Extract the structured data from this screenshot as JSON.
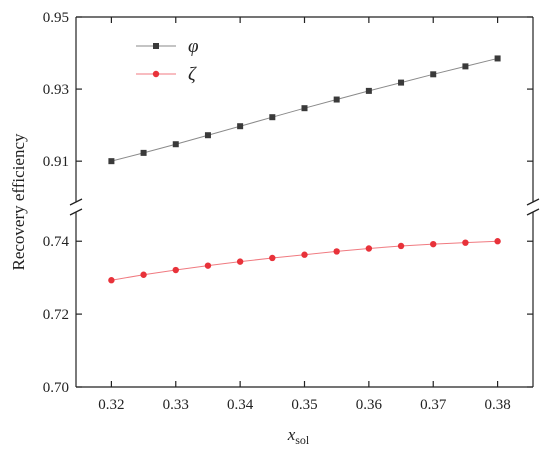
{
  "chart_data": {
    "type": "line",
    "title": "",
    "xlabel": "x",
    "xlabel_sub": "sol",
    "ylabel": "Recovery efficiency",
    "x": [
      0.32,
      0.325,
      0.33,
      0.335,
      0.34,
      0.345,
      0.35,
      0.355,
      0.36,
      0.365,
      0.37,
      0.375,
      0.38
    ],
    "x_ticks": [
      "0.32",
      "0.33",
      "0.34",
      "0.35",
      "0.36",
      "0.37",
      "0.38"
    ],
    "xlim": [
      0.3145,
      0.3855
    ],
    "y_break": true,
    "y_segments": [
      {
        "ylim": [
          0.7,
          0.745
        ],
        "ticks": [
          "0.70",
          "0.72",
          "0.74"
        ]
      },
      {
        "ylim": [
          0.902,
          0.95
        ],
        "ticks": [
          "0.91",
          "0.93",
          "0.95"
        ]
      }
    ],
    "legend_position": "top-left",
    "grid": false,
    "series": [
      {
        "name": "φ",
        "marker": "square",
        "color": "#3a3a3a",
        "line_color": "#8a8a8a",
        "values": [
          0.91,
          0.9123,
          0.9147,
          0.9172,
          0.9197,
          0.9222,
          0.9247,
          0.9271,
          0.9295,
          0.9318,
          0.9341,
          0.9363,
          0.9385
        ]
      },
      {
        "name": "ζ",
        "marker": "circle",
        "color": "#e8323a",
        "line_color": "#f07a80",
        "values": [
          0.7293,
          0.7308,
          0.7321,
          0.7333,
          0.7344,
          0.7354,
          0.7363,
          0.7372,
          0.738,
          0.7387,
          0.7392,
          0.7396,
          0.74
        ]
      }
    ]
  }
}
